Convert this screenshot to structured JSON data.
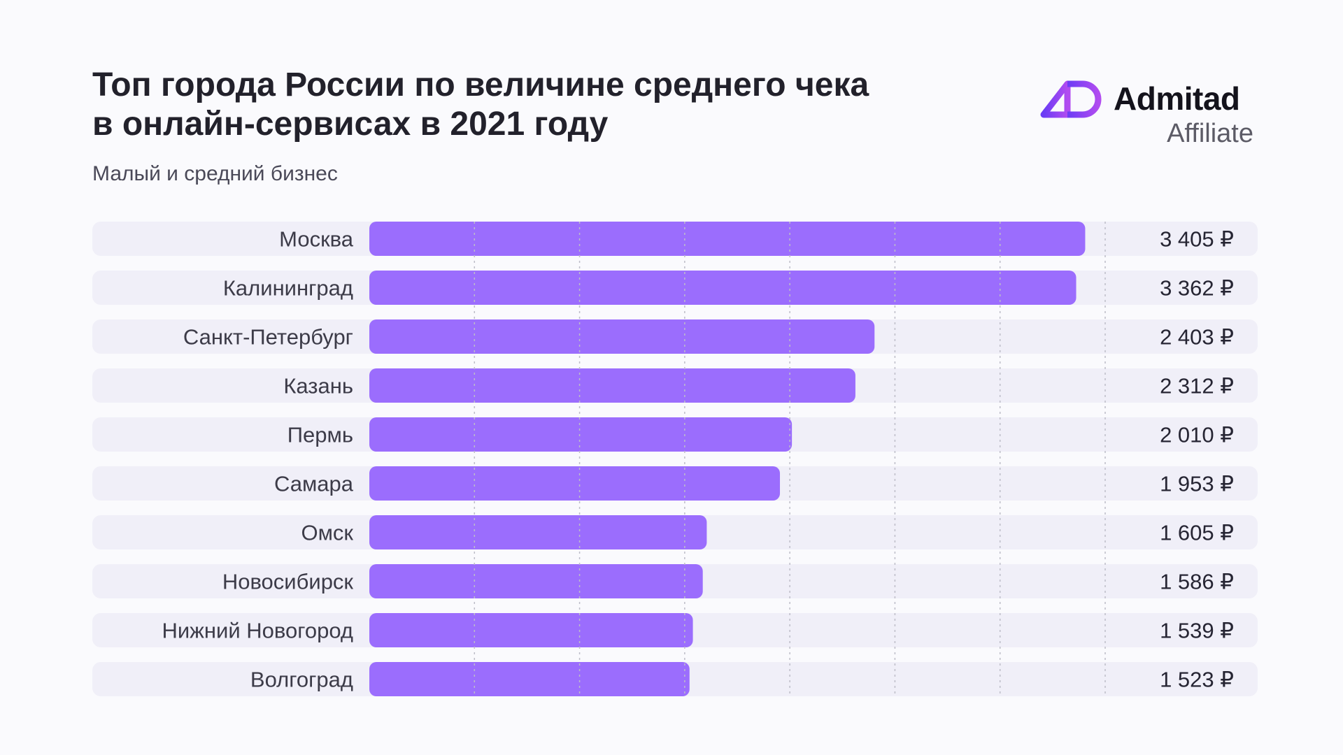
{
  "header": {
    "title_line1": "Топ города России по величине среднего чека",
    "title_line2": "в онлайн-сервисах в 2021 году",
    "subtitle": "Малый и средний бизнес"
  },
  "logo": {
    "brand": "Admitad",
    "sub": "Affiliate",
    "icon": "admitad-logo-icon"
  },
  "colors": {
    "bar": "#9b6dfd",
    "row_background": "#f0eff8",
    "gridline": "#bdbdc8",
    "logo_gradient_start": "#6b3cf5",
    "logo_gradient_end": "#b14cf0"
  },
  "chart_data": {
    "type": "bar",
    "orientation": "horizontal",
    "title": "Топ города России по величине среднего чека в онлайн-сервисах в 2021 году",
    "subtitle": "Малый и средний бизнес",
    "categories": [
      "Москва",
      "Калининград",
      "Санкт-Петербург",
      "Казань",
      "Пермь",
      "Самара",
      "Омск",
      "Новосибирск",
      "Нижний Новогород",
      "Волгоград"
    ],
    "values": [
      3405,
      3362,
      2403,
      2312,
      2010,
      1953,
      1605,
      1586,
      1539,
      1523
    ],
    "value_labels": [
      "3 405 ₽",
      "3 362 ₽",
      "2 403 ₽",
      "2 312 ₽",
      "2 010 ₽",
      "1 953 ₽",
      "1 605 ₽",
      "1 586 ₽",
      "1 539 ₽",
      "1 523 ₽"
    ],
    "unit": "₽",
    "xlim": [
      0,
      3500
    ],
    "grid_step": 500,
    "grid": true,
    "legend": "none"
  }
}
